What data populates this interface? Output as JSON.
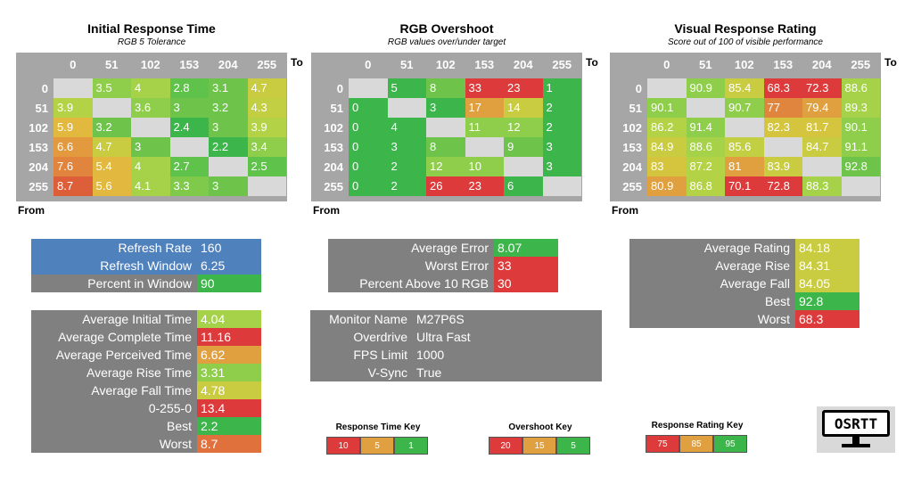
{
  "colors": {
    "header_gray": "#a6a6a6",
    "diag_gray": "#d9d9d9",
    "stat_gray": "#808080",
    "blue": "#4f81bd",
    "green": "#3cb54a",
    "lightgreen": "#8fce4a",
    "yellow": "#c9cc40",
    "orange": "#e0a040",
    "red": "#dd3b3b"
  },
  "labels": {
    "to": "To",
    "from": "From"
  },
  "chart_data": [
    {
      "type": "heatmap",
      "title": "Initial Response Time",
      "subtitle": "RGB 5 Tolerance",
      "columns": [
        "0",
        "51",
        "102",
        "153",
        "204",
        "255"
      ],
      "rows": [
        "0",
        "51",
        "102",
        "153",
        "204",
        "255"
      ],
      "values": [
        [
          null,
          "3.5",
          "4",
          "2.8",
          "3.1",
          "4.7"
        ],
        [
          "3.9",
          null,
          "3.6",
          "3",
          "3.2",
          "4.3"
        ],
        [
          "5.9",
          "3.2",
          null,
          "2.4",
          "3",
          "3.9"
        ],
        [
          "6.6",
          "4.7",
          "3",
          null,
          "2.2",
          "3.4"
        ],
        [
          "7.6",
          "5.4",
          "4",
          "2.7",
          null,
          "2.5"
        ],
        [
          "8.7",
          "5.6",
          "4.1",
          "3.3",
          "3",
          null
        ]
      ],
      "cell_colors": [
        [
          "diag",
          "#8fce4a",
          "#a6d24a",
          "#5fc24a",
          "#6ec44a",
          "#c9cc40"
        ],
        [
          "#b4d246",
          "diag",
          "#8fce4a",
          "#6ec44a",
          "#6ec44a",
          "#c2cf42"
        ],
        [
          "#e2b83e",
          "#6ec44a",
          "diag",
          "#3cb54a",
          "#6ec44a",
          "#b4d246"
        ],
        [
          "#e39a3f",
          "#c9cc40",
          "#6ec44a",
          "diag",
          "#3cb54a",
          "#8fce4a"
        ],
        [
          "#e1843d",
          "#e2b83e",
          "#a6d24a",
          "#5fc24a",
          "diag",
          "#5fc24a"
        ],
        [
          "#dc5f3a",
          "#e2b83e",
          "#a6d24a",
          "#7fca4a",
          "#6ec44a",
          "diag"
        ]
      ]
    },
    {
      "type": "heatmap",
      "title": "RGB Overshoot",
      "subtitle": "RGB values over/under target",
      "columns": [
        "0",
        "51",
        "102",
        "153",
        "204",
        "255"
      ],
      "rows": [
        "0",
        "51",
        "102",
        "153",
        "204",
        "255"
      ],
      "values": [
        [
          null,
          "5",
          "8",
          "33",
          "23",
          "1"
        ],
        [
          "0",
          null,
          "3",
          "17",
          "14",
          "2"
        ],
        [
          "0",
          "4",
          null,
          "11",
          "12",
          "2"
        ],
        [
          "0",
          "3",
          "8",
          null,
          "9",
          "3"
        ],
        [
          "0",
          "2",
          "12",
          "10",
          null,
          "3"
        ],
        [
          "0",
          "2",
          "26",
          "23",
          "6",
          null
        ]
      ],
      "cell_colors": [
        [
          "diag",
          "#3cb54a",
          "#6ec44a",
          "#dd3b3b",
          "#dd3b3b",
          "#3cb54a"
        ],
        [
          "#3cb54a",
          "diag",
          "#3cb54a",
          "#e0a040",
          "#c9cc40",
          "#3cb54a"
        ],
        [
          "#3cb54a",
          "#3cb54a",
          "diag",
          "#8fce4a",
          "#8fce4a",
          "#3cb54a"
        ],
        [
          "#3cb54a",
          "#3cb54a",
          "#6ec44a",
          "diag",
          "#6ec44a",
          "#3cb54a"
        ],
        [
          "#3cb54a",
          "#3cb54a",
          "#8fce4a",
          "#8fce4a",
          "diag",
          "#3cb54a"
        ],
        [
          "#3cb54a",
          "#3cb54a",
          "#dd3b3b",
          "#dd3b3b",
          "#3cb54a",
          "diag"
        ]
      ]
    },
    {
      "type": "heatmap",
      "title": "Visual Response Rating",
      "subtitle": "Score out of 100 of visible performance",
      "columns": [
        "0",
        "51",
        "102",
        "153",
        "204",
        "255"
      ],
      "rows": [
        "0",
        "51",
        "102",
        "153",
        "204",
        "255"
      ],
      "values": [
        [
          null,
          "90.9",
          "85.4",
          "68.3",
          "72.3",
          "88.6"
        ],
        [
          "90.1",
          null,
          "90.7",
          "77",
          "79.4",
          "89.3"
        ],
        [
          "86.2",
          "91.4",
          null,
          "82.3",
          "81.7",
          "90.1"
        ],
        [
          "84.9",
          "88.6",
          "85.6",
          null,
          "84.7",
          "91.1"
        ],
        [
          "83",
          "87.2",
          "81",
          "83.9",
          null,
          "92.8"
        ],
        [
          "80.9",
          "86.8",
          "70.1",
          "72.8",
          "88.3",
          null
        ]
      ],
      "cell_colors": [
        [
          "diag",
          "#8fce4a",
          "#c9cc40",
          "#dd3b3b",
          "#dd3b3b",
          "#a6d24a"
        ],
        [
          "#8fce4a",
          "diag",
          "#8fce4a",
          "#e0853d",
          "#e0a040",
          "#a6d24a"
        ],
        [
          "#b4d246",
          "#8fce4a",
          "diag",
          "#d4c43e",
          "#d4c43e",
          "#8fce4a"
        ],
        [
          "#c9cc40",
          "#a6d24a",
          "#c2cf42",
          "diag",
          "#c9cc40",
          "#8fce4a"
        ],
        [
          "#d4c43e",
          "#b4d246",
          "#e0a040",
          "#c9cc40",
          "diag",
          "#6ec44a"
        ],
        [
          "#e0a040",
          "#b4d246",
          "#dd3b3b",
          "#dd3b3b",
          "#a6d24a",
          "diag"
        ]
      ]
    }
  ],
  "stats": {
    "refresh": [
      {
        "key": "Refresh Rate",
        "value": "160",
        "kcolor": "#4f81bd",
        "vcolor": "#4f81bd"
      },
      {
        "key": "Refresh Window",
        "value": "6.25",
        "kcolor": "#4f81bd",
        "vcolor": "#4f81bd"
      },
      {
        "key": "Percent in Window",
        "value": "90",
        "kcolor": "#808080",
        "vcolor": "#3cb54a"
      }
    ],
    "response": [
      {
        "key": "Average Initial Time",
        "value": "4.04",
        "vcolor": "#a6d24a"
      },
      {
        "key": "Average Complete Time",
        "value": "11.16",
        "vcolor": "#dd3b3b"
      },
      {
        "key": "Average Perceived Time",
        "value": "6.62",
        "vcolor": "#e0a040"
      },
      {
        "key": "Average Rise Time",
        "value": "3.31",
        "vcolor": "#8fce4a"
      },
      {
        "key": "Average Fall Time",
        "value": "4.78",
        "vcolor": "#c9cc40"
      },
      {
        "key": "0-255-0",
        "value": "13.4",
        "vcolor": "#dd3b3b"
      },
      {
        "key": "Best",
        "value": "2.2",
        "vcolor": "#3cb54a"
      },
      {
        "key": "Worst",
        "value": "8.7",
        "vcolor": "#e0713d"
      }
    ],
    "overshoot": [
      {
        "key": "Average Error",
        "value": "8.07",
        "vcolor": "#3cb54a"
      },
      {
        "key": "Worst Error",
        "value": "33",
        "vcolor": "#dd3b3b"
      },
      {
        "key": "Percent Above 10 RGB",
        "value": "30",
        "vcolor": "#dd3b3b"
      }
    ],
    "monitor": [
      {
        "key": "Monitor Name",
        "value": "M27P6S"
      },
      {
        "key": "Overdrive",
        "value": "Ultra Fast"
      },
      {
        "key": "FPS Limit",
        "value": "1000"
      },
      {
        "key": "V-Sync",
        "value": "True"
      }
    ],
    "rating": [
      {
        "key": "Average Rating",
        "value": "84.18",
        "vcolor": "#c9cc40"
      },
      {
        "key": "Average Rise",
        "value": "84.31",
        "vcolor": "#c9cc40"
      },
      {
        "key": "Average Fall",
        "value": "84.05",
        "vcolor": "#c9cc40"
      },
      {
        "key": "Best",
        "value": "92.8",
        "vcolor": "#3cb54a"
      },
      {
        "key": "Worst",
        "value": "68.3",
        "vcolor": "#dd3b3b"
      }
    ]
  },
  "keys": [
    {
      "title": "Response Time Key",
      "items": [
        {
          "v": "10",
          "c": "#dd3b3b"
        },
        {
          "v": "5",
          "c": "#e0a040"
        },
        {
          "v": "1",
          "c": "#3cb54a"
        }
      ]
    },
    {
      "title": "Overshoot Key",
      "items": [
        {
          "v": "20",
          "c": "#dd3b3b"
        },
        {
          "v": "15",
          "c": "#e0a040"
        },
        {
          "v": "5",
          "c": "#3cb54a"
        }
      ]
    },
    {
      "title": "Response Rating Key",
      "items": [
        {
          "v": "75",
          "c": "#dd3b3b"
        },
        {
          "v": "85",
          "c": "#e0a040"
        },
        {
          "v": "95",
          "c": "#3cb54a"
        }
      ]
    }
  ],
  "logo": {
    "text": "OSRTT"
  }
}
